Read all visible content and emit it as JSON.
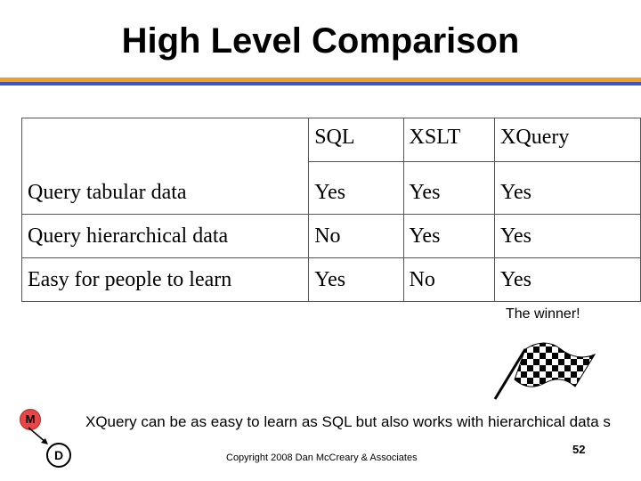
{
  "slide": {
    "title": "High Level Comparison",
    "accent_colors": {
      "orange": "#f0a020",
      "blue": "#3a55c8"
    }
  },
  "table": {
    "columns": [
      "SQL",
      "XSLT",
      "XQuery"
    ],
    "rows": [
      {
        "feature": "Query tabular data",
        "values": [
          "Yes",
          "Yes",
          "Yes"
        ]
      },
      {
        "feature": "Query hierarchical data",
        "values": [
          "No",
          "Yes",
          "Yes"
        ]
      },
      {
        "feature": "Easy for people to learn",
        "values": [
          "Yes",
          "No",
          "Yes"
        ]
      }
    ]
  },
  "winner_label": "The winner!",
  "winner_icon": "checkered-flag-icon",
  "diagram": {
    "node_m": "M",
    "node_d": "D",
    "node_m_color": "#e44444"
  },
  "caption": "XQuery can be as easy to learn as SQL but also works with hierarchical data s",
  "footer": {
    "copyright": "Copyright 2008 Dan McCreary & Associates",
    "page_number": "52"
  }
}
